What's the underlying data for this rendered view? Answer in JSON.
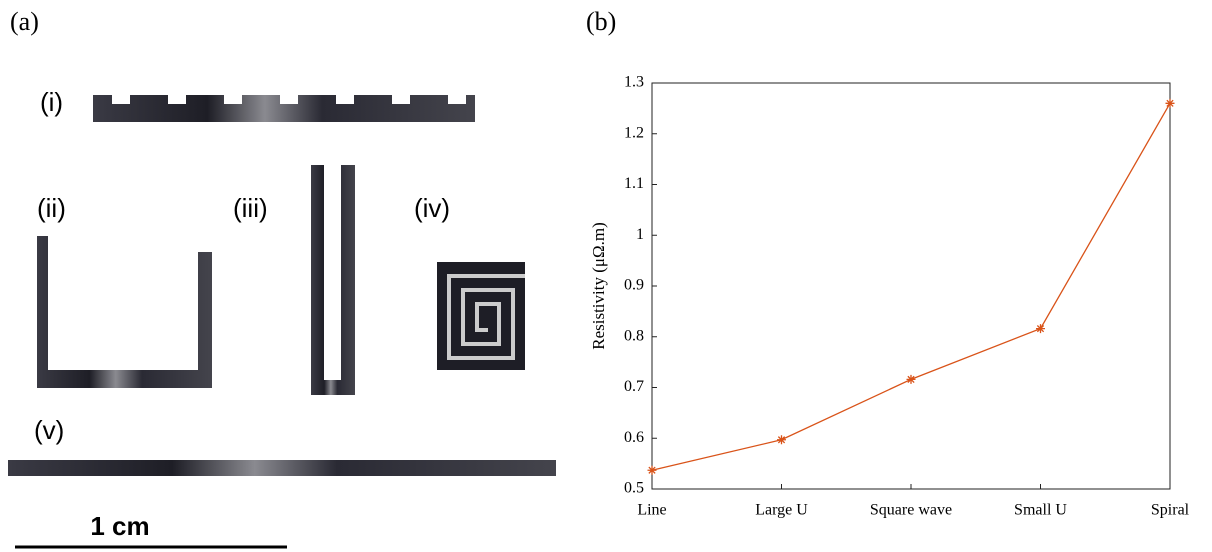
{
  "figure": {
    "panel_a_label": "(a)",
    "panel_b_label": "(b)",
    "samples": [
      "(i)",
      "(ii)",
      "(iii)",
      "(iv)",
      "(v)"
    ],
    "scale_bar": "1 cm"
  },
  "chart_data": {
    "type": "line",
    "y_label": "Resistivity (μΩ.m)",
    "categories": [
      "Line",
      "Large U",
      "Square wave",
      "Small U",
      "Spiral"
    ],
    "values": [
      0.537,
      0.597,
      0.716,
      0.816,
      1.26
    ],
    "color": "#d95319",
    "ylim": [
      0.5,
      1.3
    ],
    "yticks": [
      0.5,
      0.6,
      0.7,
      0.8,
      0.9,
      1,
      1.1,
      1.2,
      1.3
    ]
  }
}
